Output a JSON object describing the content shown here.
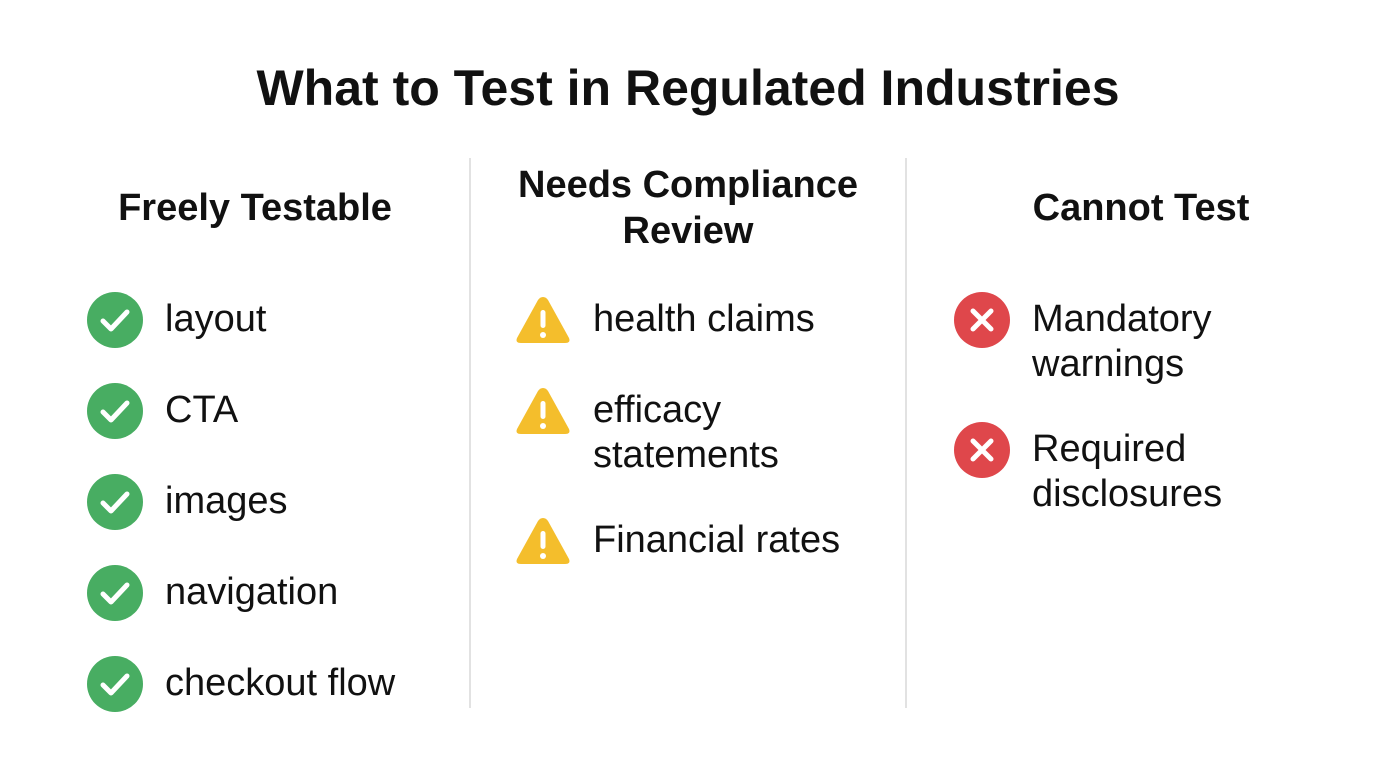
{
  "title": "What to Test in Regulated Industries",
  "columns": [
    {
      "heading": "Freely Testable",
      "items": [
        "layout",
        "CTA",
        "images",
        "navigation",
        "checkout flow"
      ]
    },
    {
      "heading": "Needs Compliance Review",
      "items": [
        "health claims",
        "efficacy statements",
        "Financial rates"
      ]
    },
    {
      "heading": "Cannot Test",
      "items": [
        "Mandatory warnings",
        "Required disclosures"
      ]
    }
  ]
}
